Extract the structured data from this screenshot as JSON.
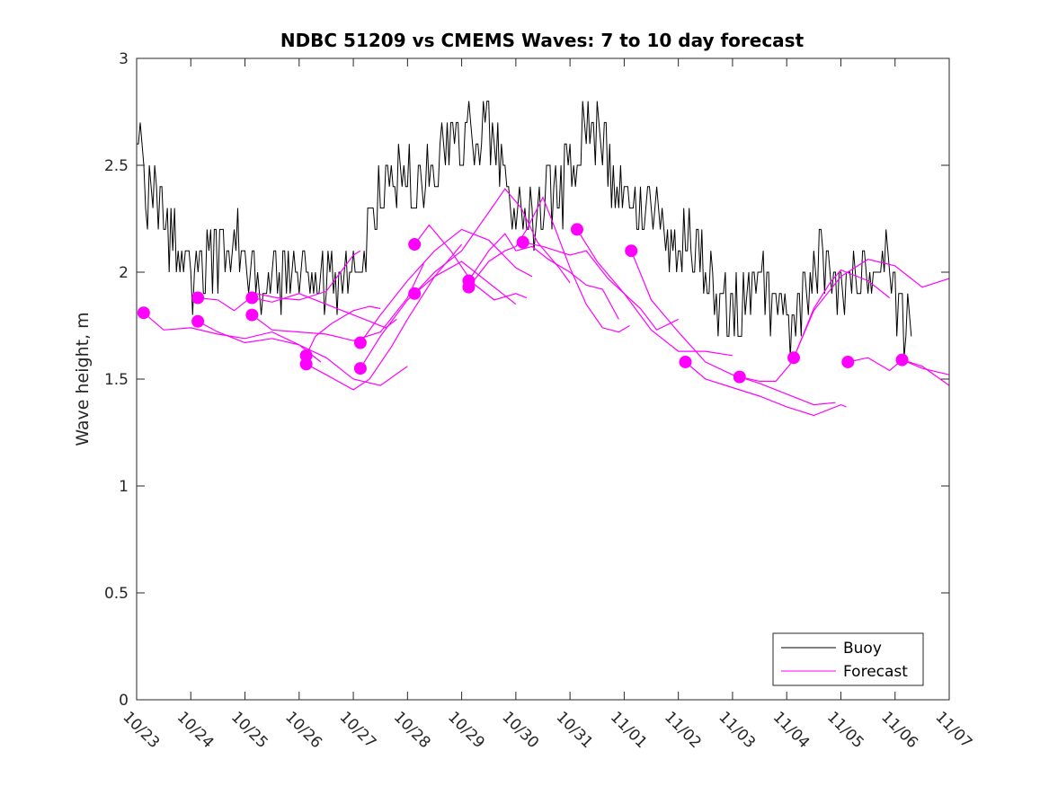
{
  "chart_data": {
    "type": "line",
    "title": "NDBC 51209 vs CMEMS Waves: 7 to 10 day forecast",
    "xlabel": "",
    "ylabel": "Wave height, m",
    "x_unit": "days since 10/23 00:00",
    "xlim": [
      0,
      15
    ],
    "ylim": [
      0,
      3
    ],
    "x_tick_values": [
      0,
      1,
      2,
      3,
      4,
      5,
      6,
      7,
      8,
      9,
      10,
      11,
      12,
      13,
      14,
      15
    ],
    "x_tick_labels": [
      "10/23",
      "10/24",
      "10/25",
      "10/26",
      "10/27",
      "10/28",
      "10/29",
      "10/30",
      "10/31",
      "11/01",
      "11/02",
      "11/03",
      "11/04",
      "11/05",
      "11/06",
      "11/07"
    ],
    "y_tick_values": [
      0,
      0.5,
      1,
      1.5,
      2,
      2.5,
      3
    ],
    "y_tick_labels": [
      "0",
      "0.5",
      "1",
      "1.5",
      "2",
      "2.5",
      "3"
    ],
    "grid": false,
    "legend": {
      "placement": "bottom-right",
      "entries": [
        {
          "name": "Buoy",
          "color": "#000000"
        },
        {
          "name": "Forecast",
          "color": "#ff00ff"
        }
      ]
    },
    "colors": {
      "buoy": "#000000",
      "forecast": "#ff00ff",
      "axes": "#262626"
    },
    "buoy": {
      "name": "Buoy",
      "anchors": [
        [
          0.0,
          2.6
        ],
        [
          0.05,
          2.7
        ],
        [
          0.15,
          2.4
        ],
        [
          0.3,
          2.3
        ],
        [
          0.45,
          2.4
        ],
        [
          0.6,
          2.2
        ],
        [
          0.8,
          2.1
        ],
        [
          1.0,
          2.0
        ],
        [
          1.2,
          2.0
        ],
        [
          1.4,
          2.05
        ],
        [
          1.6,
          2.1
        ],
        [
          1.75,
          2.2
        ],
        [
          1.9,
          2.1
        ],
        [
          2.0,
          2.0
        ],
        [
          2.2,
          1.95
        ],
        [
          2.4,
          2.0
        ],
        [
          2.6,
          1.95
        ],
        [
          2.8,
          2.0
        ],
        [
          3.0,
          1.95
        ],
        [
          3.2,
          1.9
        ],
        [
          3.4,
          1.95
        ],
        [
          3.6,
          1.9
        ],
        [
          3.8,
          1.95
        ],
        [
          4.0,
          2.0
        ],
        [
          4.2,
          2.1
        ],
        [
          4.35,
          2.3
        ],
        [
          4.6,
          2.4
        ],
        [
          4.9,
          2.45
        ],
        [
          5.1,
          2.4
        ],
        [
          5.3,
          2.45
        ],
        [
          5.5,
          2.5
        ],
        [
          5.7,
          2.6
        ],
        [
          5.9,
          2.55
        ],
        [
          6.1,
          2.65
        ],
        [
          6.3,
          2.6
        ],
        [
          6.5,
          2.7
        ],
        [
          6.7,
          2.55
        ],
        [
          6.9,
          2.4
        ],
        [
          7.1,
          2.25
        ],
        [
          7.3,
          2.2
        ],
        [
          7.5,
          2.3
        ],
        [
          7.7,
          2.35
        ],
        [
          7.9,
          2.4
        ],
        [
          8.1,
          2.55
        ],
        [
          8.3,
          2.65
        ],
        [
          8.5,
          2.7
        ],
        [
          8.7,
          2.55
        ],
        [
          8.9,
          2.35
        ],
        [
          9.1,
          2.25
        ],
        [
          9.3,
          2.3
        ],
        [
          9.5,
          2.3
        ],
        [
          9.7,
          2.2
        ],
        [
          9.9,
          2.1
        ],
        [
          10.1,
          2.15
        ],
        [
          10.3,
          2.1
        ],
        [
          10.5,
          2.0
        ],
        [
          10.7,
          1.9
        ],
        [
          10.9,
          1.85
        ],
        [
          11.1,
          1.8
        ],
        [
          11.3,
          1.9
        ],
        [
          11.5,
          1.95
        ],
        [
          11.7,
          1.85
        ],
        [
          11.9,
          1.8
        ],
        [
          12.1,
          1.75
        ],
        [
          12.3,
          1.85
        ],
        [
          12.5,
          2.0
        ],
        [
          12.7,
          2.05
        ],
        [
          12.9,
          2.0
        ],
        [
          13.1,
          1.95
        ],
        [
          13.3,
          2.0
        ],
        [
          13.5,
          2.05
        ],
        [
          13.7,
          2.05
        ],
        [
          13.9,
          2.0
        ],
        [
          14.0,
          1.95
        ],
        [
          14.1,
          1.75
        ],
        [
          14.2,
          1.75
        ],
        [
          14.3,
          1.9
        ]
      ],
      "noise_amplitude": 0.1,
      "resolution_m": 0.1
    },
    "forecasts": [
      {
        "start": [
          0.13,
          1.81
        ],
        "points": [
          [
            0.13,
            1.81
          ],
          [
            0.5,
            1.73
          ],
          [
            1.0,
            1.74
          ],
          [
            1.5,
            1.71
          ],
          [
            2.0,
            1.69
          ],
          [
            2.5,
            1.72
          ],
          [
            3.0,
            1.66
          ],
          [
            3.4,
            1.58
          ]
        ]
      },
      {
        "start": [
          1.13,
          1.88
        ],
        "points": [
          [
            1.13,
            1.88
          ],
          [
            1.5,
            1.87
          ],
          [
            1.8,
            1.82
          ],
          [
            2.2,
            1.9
          ],
          [
            2.6,
            1.88
          ],
          [
            3.0,
            1.87
          ],
          [
            3.5,
            1.91
          ],
          [
            4.0,
            2.08
          ],
          [
            4.13,
            2.1
          ]
        ]
      },
      {
        "start": [
          1.13,
          1.77
        ],
        "points": [
          [
            1.13,
            1.77
          ],
          [
            1.5,
            1.72
          ],
          [
            2.0,
            1.67
          ],
          [
            2.5,
            1.69
          ],
          [
            3.0,
            1.66
          ],
          [
            3.5,
            1.6
          ],
          [
            4.0,
            1.5
          ],
          [
            4.5,
            1.47
          ],
          [
            5.0,
            1.56
          ]
        ]
      },
      {
        "start": [
          2.13,
          1.88
        ],
        "points": [
          [
            2.13,
            1.88
          ],
          [
            2.5,
            1.86
          ],
          [
            3.0,
            1.9
          ],
          [
            3.5,
            1.85
          ],
          [
            4.0,
            1.8
          ],
          [
            4.3,
            1.77
          ],
          [
            4.6,
            1.74
          ],
          [
            4.8,
            1.78
          ]
        ]
      },
      {
        "start": [
          2.13,
          1.8
        ],
        "points": [
          [
            2.13,
            1.8
          ],
          [
            2.5,
            1.73
          ],
          [
            3.0,
            1.72
          ],
          [
            3.5,
            1.71
          ],
          [
            4.0,
            1.68
          ],
          [
            4.5,
            1.72
          ],
          [
            5.0,
            1.88
          ],
          [
            5.3,
            2.04
          ]
        ]
      },
      {
        "start": [
          3.13,
          1.61
        ],
        "points": [
          [
            3.13,
            1.61
          ],
          [
            3.3,
            1.7
          ],
          [
            3.6,
            1.76
          ],
          [
            4.0,
            1.82
          ],
          [
            4.3,
            1.84
          ],
          [
            4.5,
            1.83
          ]
        ]
      },
      {
        "start": [
          3.13,
          1.57
        ],
        "points": [
          [
            3.13,
            1.57
          ],
          [
            3.5,
            1.52
          ],
          [
            4.0,
            1.45
          ],
          [
            4.3,
            1.5
          ],
          [
            4.7,
            1.65
          ],
          [
            5.0,
            1.78
          ],
          [
            5.5,
            1.98
          ],
          [
            6.0,
            2.13
          ]
        ]
      },
      {
        "start": [
          4.13,
          1.67
        ],
        "points": [
          [
            4.13,
            1.67
          ],
          [
            4.5,
            1.8
          ],
          [
            5.0,
            1.96
          ],
          [
            5.5,
            2.1
          ],
          [
            6.0,
            2.2
          ],
          [
            6.5,
            2.15
          ],
          [
            7.0,
            2.02
          ],
          [
            7.3,
            1.98
          ]
        ]
      },
      {
        "start": [
          4.13,
          1.55
        ],
        "points": [
          [
            4.13,
            1.55
          ],
          [
            4.5,
            1.7
          ],
          [
            5.0,
            1.87
          ],
          [
            5.5,
            1.98
          ],
          [
            6.0,
            2.05
          ],
          [
            6.5,
            1.95
          ],
          [
            7.0,
            1.85
          ]
        ]
      },
      {
        "start": [
          5.13,
          2.13
        ],
        "points": [
          [
            5.13,
            2.13
          ],
          [
            5.4,
            2.22
          ],
          [
            5.8,
            2.1
          ],
          [
            6.2,
            1.95
          ],
          [
            6.6,
            1.87
          ],
          [
            7.0,
            1.9
          ],
          [
            7.2,
            1.88
          ]
        ]
      },
      {
        "start": [
          5.13,
          1.9
        ],
        "points": [
          [
            5.13,
            1.9
          ],
          [
            5.5,
            2.0
          ],
          [
            6.0,
            2.1
          ],
          [
            6.5,
            2.28
          ],
          [
            6.8,
            2.39
          ],
          [
            7.1,
            2.3
          ],
          [
            7.4,
            2.14
          ],
          [
            7.8,
            2.02
          ],
          [
            8.0,
            1.95
          ]
        ]
      },
      {
        "start": [
          6.13,
          1.96
        ],
        "points": [
          [
            6.13,
            1.96
          ],
          [
            6.5,
            2.1
          ],
          [
            6.8,
            2.18
          ],
          [
            7.0,
            2.1
          ],
          [
            7.3,
            2.12
          ],
          [
            7.6,
            2.06
          ],
          [
            8.0,
            2.0
          ],
          [
            8.3,
            1.94
          ],
          [
            8.6,
            1.92
          ],
          [
            8.9,
            1.78
          ]
        ]
      },
      {
        "start": [
          6.13,
          1.93
        ],
        "points": [
          [
            6.13,
            1.93
          ],
          [
            6.5,
            2.05
          ],
          [
            6.8,
            2.1
          ],
          [
            7.0,
            2.12
          ],
          [
            7.2,
            2.2
          ],
          [
            7.5,
            2.35
          ],
          [
            7.7,
            2.22
          ],
          [
            8.0,
            2.02
          ],
          [
            8.3,
            1.85
          ],
          [
            8.6,
            1.74
          ],
          [
            8.9,
            1.72
          ],
          [
            9.1,
            1.75
          ]
        ]
      },
      {
        "start": [
          7.13,
          2.14
        ],
        "points": [
          [
            7.13,
            2.14
          ],
          [
            7.5,
            2.12
          ],
          [
            8.0,
            2.08
          ],
          [
            8.3,
            2.1
          ],
          [
            8.7,
            1.97
          ],
          [
            9.0,
            1.9
          ],
          [
            9.3,
            1.83
          ],
          [
            9.6,
            1.73
          ],
          [
            10.0,
            1.78
          ]
        ]
      },
      {
        "start": [
          8.13,
          2.2
        ],
        "points": [
          [
            8.13,
            2.2
          ],
          [
            8.5,
            2.05
          ],
          [
            9.0,
            1.9
          ],
          [
            9.5,
            1.73
          ],
          [
            10.0,
            1.63
          ],
          [
            10.5,
            1.63
          ],
          [
            11.0,
            1.61
          ]
        ]
      },
      {
        "start": [
          9.13,
          2.1
        ],
        "points": [
          [
            9.13,
            2.1
          ],
          [
            9.5,
            1.87
          ],
          [
            10.0,
            1.72
          ],
          [
            10.5,
            1.58
          ],
          [
            11.0,
            1.52
          ],
          [
            11.5,
            1.48
          ],
          [
            12.0,
            1.43
          ],
          [
            12.5,
            1.38
          ],
          [
            12.9,
            1.39
          ]
        ]
      },
      {
        "start": [
          10.13,
          1.58
        ],
        "points": [
          [
            10.13,
            1.58
          ],
          [
            10.5,
            1.5
          ],
          [
            11.0,
            1.46
          ],
          [
            11.5,
            1.42
          ],
          [
            12.0,
            1.37
          ],
          [
            12.5,
            1.33
          ],
          [
            13.0,
            1.38
          ],
          [
            13.1,
            1.37
          ]
        ]
      },
      {
        "start": [
          11.13,
          1.51
        ],
        "points": [
          [
            11.13,
            1.51
          ],
          [
            11.5,
            1.49
          ],
          [
            11.8,
            1.49
          ],
          [
            12.1,
            1.58
          ],
          [
            12.5,
            1.83
          ],
          [
            12.8,
            1.95
          ],
          [
            13.0,
            2.01
          ],
          [
            13.5,
            1.96
          ],
          [
            13.9,
            1.88
          ]
        ]
      },
      {
        "start": [
          12.13,
          1.6
        ],
        "points": [
          [
            12.13,
            1.6
          ],
          [
            12.5,
            1.82
          ],
          [
            13.0,
            1.98
          ],
          [
            13.5,
            2.06
          ],
          [
            14.0,
            2.03
          ],
          [
            14.5,
            1.93
          ],
          [
            15.0,
            1.97
          ]
        ]
      },
      {
        "start": [
          13.13,
          1.58
        ],
        "points": [
          [
            13.13,
            1.58
          ],
          [
            13.5,
            1.6
          ],
          [
            13.9,
            1.54
          ],
          [
            14.13,
            1.59
          ],
          [
            14.5,
            1.55
          ],
          [
            15.0,
            1.52
          ]
        ]
      },
      {
        "start": [
          14.13,
          1.59
        ],
        "points": [
          [
            14.13,
            1.59
          ],
          [
            14.5,
            1.56
          ],
          [
            15.0,
            1.47
          ]
        ]
      }
    ]
  }
}
